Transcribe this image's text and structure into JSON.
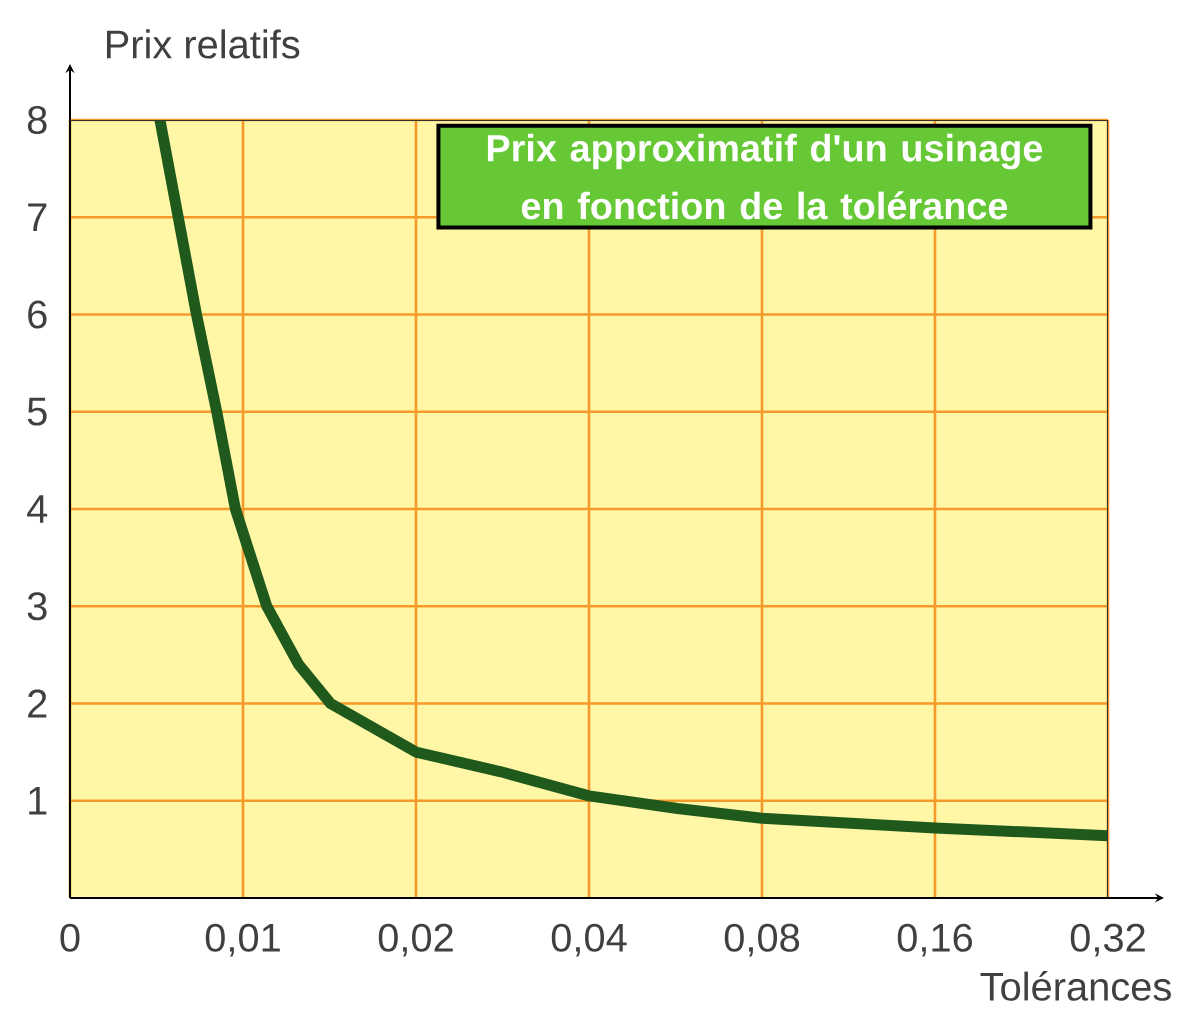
{
  "chart_data": {
    "type": "line",
    "title": "Prix approximatif d'un usinage en fonction de la tolérance",
    "xlabel": "Tolérances",
    "ylabel": "Prix relatifs",
    "x": [
      0.00717,
      0.0083,
      0.009,
      0.0097,
      0.011,
      0.0125,
      0.0142,
      0.02,
      0.028,
      0.04,
      0.057,
      0.08,
      0.16,
      0.32
    ],
    "values": [
      8,
      6,
      5,
      4,
      3,
      2.4,
      2,
      1.5,
      1.3,
      1.05,
      0.92,
      0.82,
      0.72,
      0.64
    ],
    "color": "#1f5a1c",
    "log": "x",
    "grid": true,
    "xlim": [
      0.005,
      0.32
    ],
    "ylim": [
      0,
      8
    ],
    "xticks": [
      {
        "value": 0.005,
        "label": "0"
      },
      {
        "value": 0.01,
        "label": "0,01"
      },
      {
        "value": 0.02,
        "label": "0,02"
      },
      {
        "value": 0.04,
        "label": "0,04"
      },
      {
        "value": 0.08,
        "label": "0,08"
      },
      {
        "value": 0.16,
        "label": "0,16"
      },
      {
        "value": 0.32,
        "label": "0,32"
      }
    ],
    "yticks": [
      1,
      2,
      3,
      4,
      5,
      6,
      7,
      8
    ]
  }
}
